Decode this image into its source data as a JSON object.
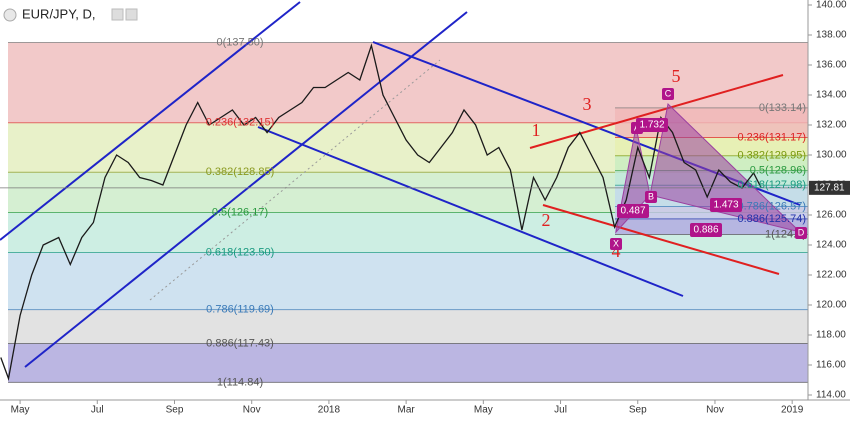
{
  "chart_data": {
    "type": "line",
    "title": "EUR/JPY, D,",
    "color": "#1a1a1a",
    "x": [
      -0.5,
      -0.3,
      0,
      0.3,
      0.6,
      1.0,
      1.3,
      1.6,
      1.9,
      2.2,
      2.5,
      2.8,
      3.1,
      3.4,
      3.7,
      4.0,
      4.3,
      4.6,
      4.9,
      5.2,
      5.5,
      5.8,
      6.1,
      6.4,
      6.7,
      7.0,
      7.3,
      7.6,
      7.9,
      8.2,
      8.5,
      8.8,
      9.1,
      9.4,
      9.7,
      10.0,
      10.3,
      10.6,
      10.9,
      11.2,
      11.5,
      11.8,
      12.1,
      12.4,
      12.7,
      13.0,
      13.3,
      13.6,
      13.9,
      14.2,
      14.5,
      14.8,
      15.1,
      15.4,
      15.7,
      16.0,
      16.3,
      16.6,
      16.9,
      17.2,
      17.5,
      17.8,
      18.1,
      18.4,
      18.7,
      19.0,
      19.2
    ],
    "values": [
      116.5,
      115.1,
      119.3,
      122,
      124,
      124.5,
      122.7,
      124.5,
      125.5,
      128.5,
      130,
      129.5,
      128.5,
      128.3,
      128,
      130,
      132,
      133.5,
      132,
      132.5,
      133,
      132,
      132.5,
      131.5,
      132.5,
      133,
      133.5,
      134.5,
      134.5,
      135,
      135.5,
      135,
      137.3,
      134,
      132.5,
      131,
      130,
      129.5,
      130.5,
      131.5,
      133,
      132,
      130,
      130.5,
      129,
      125,
      128.5,
      127,
      128.5,
      130.5,
      131.5,
      130,
      128.5,
      125.2,
      127,
      130.5,
      128.5,
      132.5,
      131.5,
      129.5,
      129,
      127.2,
      129,
      128.2,
      127.8,
      128.8,
      127.8
    ],
    "xlim": [
      -0.52,
      20.41
    ],
    "xticks": [
      {
        "value": 0,
        "label": "May"
      },
      {
        "value": 2,
        "label": "Jul"
      },
      {
        "value": 4,
        "label": "Sep"
      },
      {
        "value": 6,
        "label": "Nov"
      },
      {
        "value": 8,
        "label": "2018"
      },
      {
        "value": 10,
        "label": "Mar"
      },
      {
        "value": 12,
        "label": "May"
      },
      {
        "value": 14,
        "label": "Jul"
      },
      {
        "value": 16,
        "label": "Sep"
      },
      {
        "value": 18,
        "label": "Nov"
      },
      {
        "value": 20,
        "label": "2019"
      }
    ],
    "ylim": [
      114,
      140
    ],
    "yticks": [
      {
        "value": 114,
        "label": "114.00"
      },
      {
        "value": 116,
        "label": "116.00"
      },
      {
        "value": 118,
        "label": "118.00"
      },
      {
        "value": 120,
        "label": "120.00"
      },
      {
        "value": 122,
        "label": "122.00"
      },
      {
        "value": 124,
        "label": "124.00"
      },
      {
        "value": 126,
        "label": "126.00"
      },
      {
        "value": 128,
        "label": "128.00"
      },
      {
        "value": 130,
        "label": "130.00"
      },
      {
        "value": 132,
        "label": "132.00"
      },
      {
        "value": 134,
        "label": "134.00"
      },
      {
        "value": 136,
        "label": "136.00"
      },
      {
        "value": 138,
        "label": "138.00"
      },
      {
        "value": 140,
        "label": "140.00"
      }
    ],
    "last_price": 127.81,
    "fib_levels": [
      {
        "value": 137.5,
        "label": "0(137.50)"
      },
      {
        "value": 132.15,
        "label": "0.236(132.15)"
      },
      {
        "value": 128.85,
        "label": "0.382(128.85)"
      },
      {
        "value": 126.17,
        "label": "0.5(126.17)"
      },
      {
        "value": 123.5,
        "label": "0.618(123.50)"
      },
      {
        "value": 119.69,
        "label": "0.786(119.69)"
      },
      {
        "value": 117.43,
        "label": "0.886(117.43)"
      },
      {
        "value": 114.84,
        "label": "1(114.84)"
      }
    ],
    "fib_band_colors": [
      "#f2c9c9",
      "#e8f1c9",
      "#d5efd2",
      "#cdeee3",
      "#cfe2f0",
      "#e2e2e2",
      "#bbb6e2"
    ],
    "fib_label_colors": [
      "#777",
      "#d33",
      "#8a9a20",
      "#2a9a40",
      "#1a9a80",
      "#3a7ab8",
      "#555",
      "#555"
    ],
    "pattern_fib_levels": [
      {
        "value": 133.14,
        "label": "0(133.14)"
      },
      {
        "value": 131.17,
        "label": "0.236(131.17)"
      },
      {
        "value": 129.95,
        "label": "0.382(129.95)"
      },
      {
        "value": 128.96,
        "label": "0.5(128.96)"
      },
      {
        "value": 127.98,
        "label": "0.618(127.98)"
      },
      {
        "value": 126.57,
        "label": "0.786(126.57)"
      },
      {
        "value": 125.74,
        "label": "0.886(125.74)"
      },
      {
        "value": 124.7,
        "label": "1(124.7)"
      }
    ],
    "pattern_band_colors": [
      "#f0b8b8",
      "#e6f0b0",
      "#c8edc0",
      "#bfe9dc",
      "#c0d8ee",
      "#c8c4ea",
      "#b0a8e0"
    ],
    "pattern_label_colors": [
      "#777",
      "#d22",
      "#7a9a10",
      "#2a9a40",
      "#1a9a80",
      "#3a7ab8",
      "#2233aa",
      "#555"
    ],
    "waves": [
      1,
      2,
      3,
      4,
      5
    ],
    "pattern_points": [
      "X",
      "A",
      "B",
      "C",
      "D"
    ],
    "pattern_ratios": [
      0.487,
      1.732,
      1.473,
      0.886
    ]
  }
}
